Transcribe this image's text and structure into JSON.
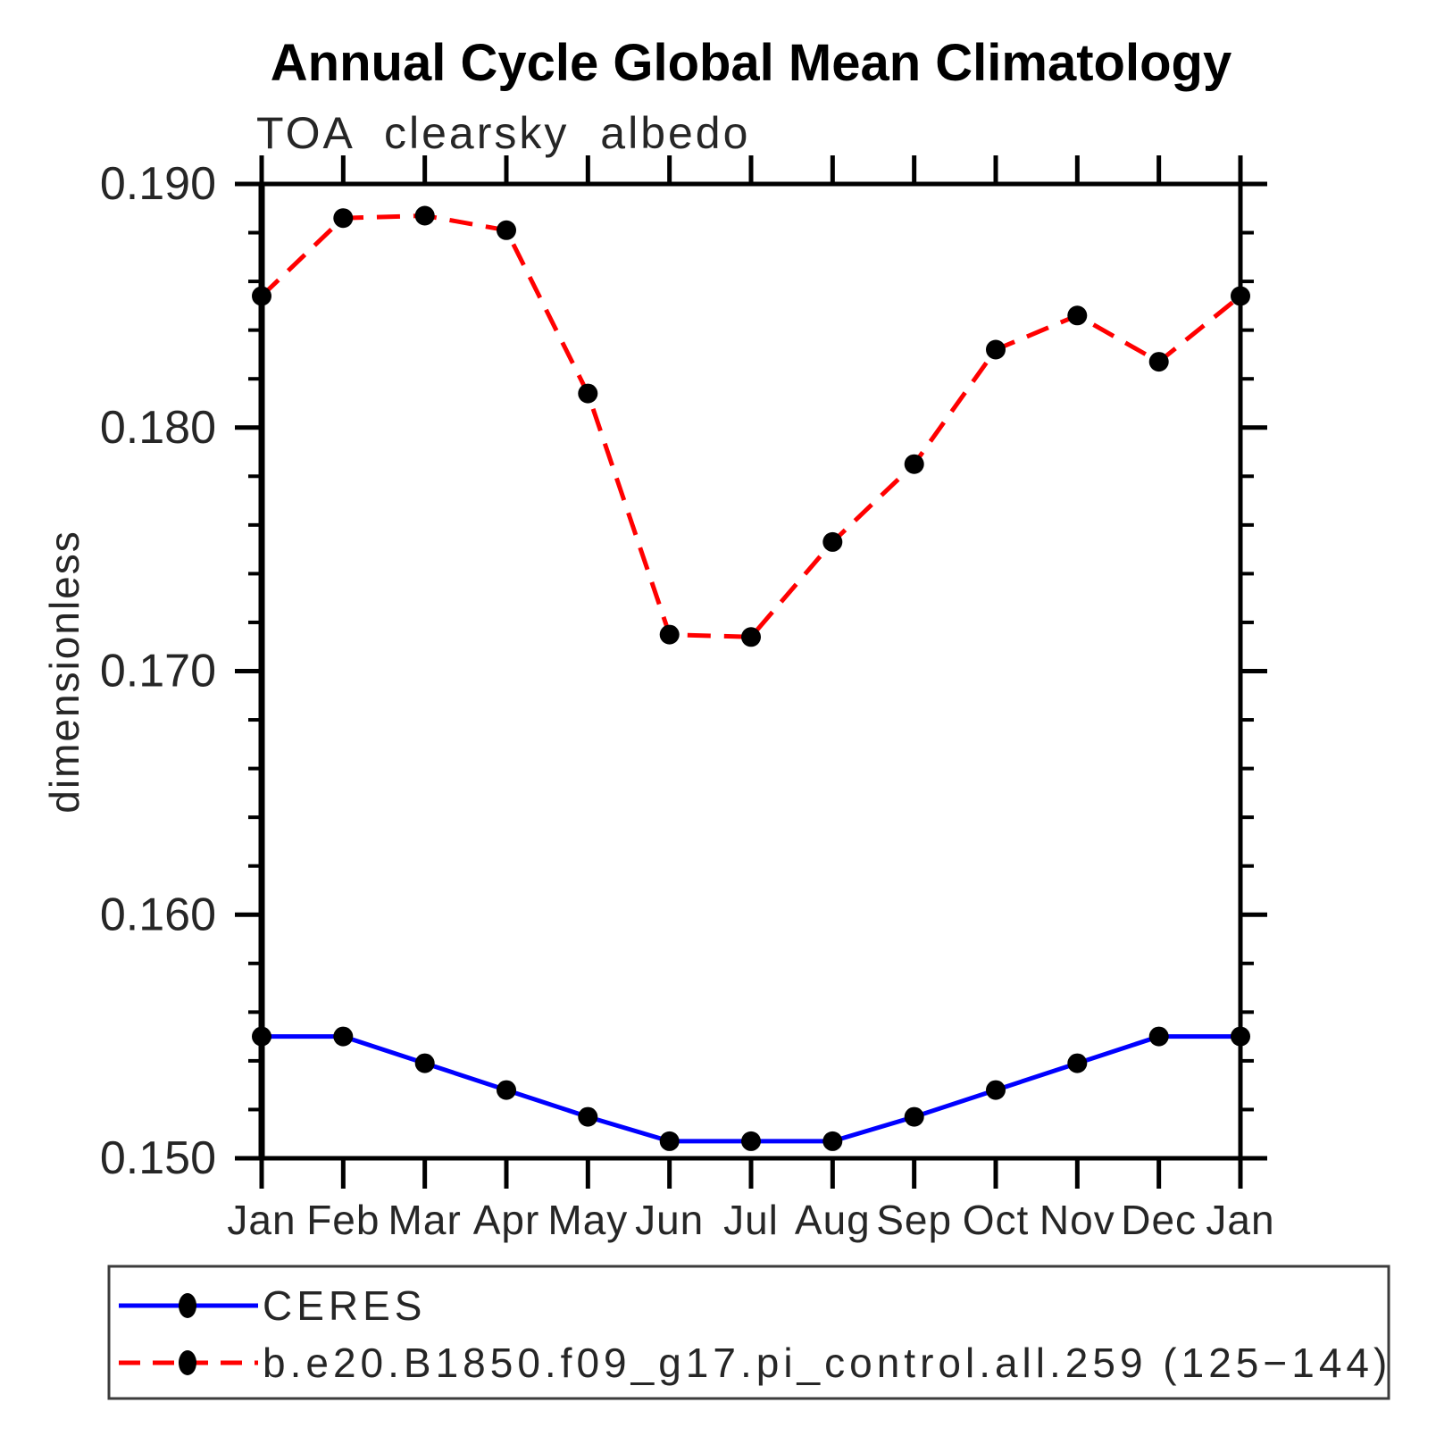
{
  "chart_data": {
    "type": "line",
    "title": "Annual Cycle Global Mean Climatology",
    "subtitle": "TOA clearsky albedo",
    "ylabel": "dimensionless",
    "xlabel": "",
    "categories": [
      "Jan",
      "Feb",
      "Mar",
      "Apr",
      "May",
      "Jun",
      "Jul",
      "Aug",
      "Sep",
      "Oct",
      "Nov",
      "Dec",
      "Jan"
    ],
    "ylim": [
      0.15,
      0.19
    ],
    "y_major_ticks": [
      0.15,
      0.16,
      0.17,
      0.18,
      0.19
    ],
    "y_tick_labels": [
      "0.150",
      "0.160",
      "0.170",
      "0.180",
      "0.190"
    ],
    "y_minor_step": 0.002,
    "grid": false,
    "legend_position": "bottom-left",
    "frame_color": "#000000",
    "marker_shape": "filled-circle",
    "series": [
      {
        "name": "CERES",
        "color": "#0000ff",
        "line_style": "solid",
        "marker_color": "#000000",
        "values": [
          0.155,
          0.155,
          0.1539,
          0.1528,
          0.1517,
          0.1507,
          0.1507,
          0.1507,
          0.1517,
          0.1528,
          0.1539,
          0.155,
          0.155
        ]
      },
      {
        "name": "b.e20.B1850.f09_g17.pi_control.all.259 (125−144)",
        "color": "#ff0000",
        "line_style": "dashed",
        "marker_color": "#000000",
        "values": [
          0.1854,
          0.1886,
          0.1887,
          0.1881,
          0.1814,
          0.1715,
          0.1714,
          0.1753,
          0.1785,
          0.1832,
          0.1846,
          0.1827,
          0.1854
        ]
      }
    ]
  }
}
